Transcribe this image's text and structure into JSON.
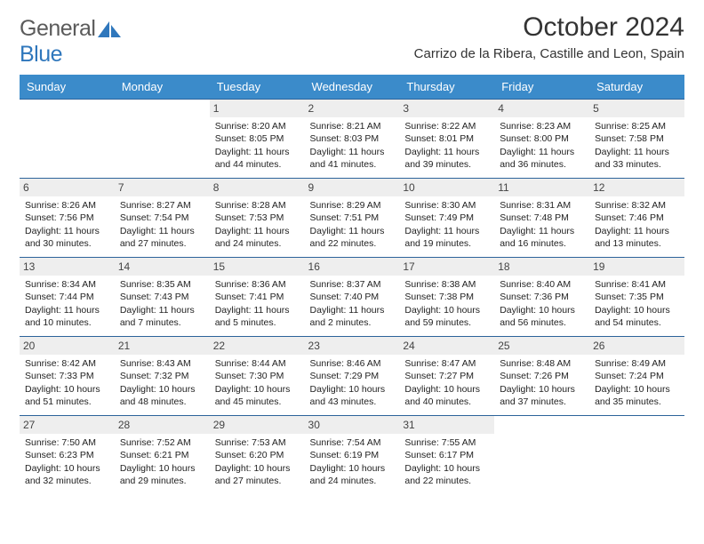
{
  "logo": {
    "word1": "General",
    "word2": "Blue"
  },
  "title": "October 2024",
  "subtitle": "Carrizo de la Ribera, Castille and Leon, Spain",
  "style": {
    "header_bg": "#3b8bca",
    "header_fg": "#ffffff",
    "daynum_bg": "#eeeeee",
    "row_border": "#2c639a",
    "title_fontsize": 30,
    "subtitle_fontsize": 15,
    "th_fontsize": 13,
    "cell_fontsize": 10.5
  },
  "day_headers": [
    "Sunday",
    "Monday",
    "Tuesday",
    "Wednesday",
    "Thursday",
    "Friday",
    "Saturday"
  ],
  "weeks": [
    [
      null,
      null,
      {
        "n": "1",
        "sunrise": "8:20 AM",
        "sunset": "8:05 PM",
        "daylight": "11 hours and 44 minutes."
      },
      {
        "n": "2",
        "sunrise": "8:21 AM",
        "sunset": "8:03 PM",
        "daylight": "11 hours and 41 minutes."
      },
      {
        "n": "3",
        "sunrise": "8:22 AM",
        "sunset": "8:01 PM",
        "daylight": "11 hours and 39 minutes."
      },
      {
        "n": "4",
        "sunrise": "8:23 AM",
        "sunset": "8:00 PM",
        "daylight": "11 hours and 36 minutes."
      },
      {
        "n": "5",
        "sunrise": "8:25 AM",
        "sunset": "7:58 PM",
        "daylight": "11 hours and 33 minutes."
      }
    ],
    [
      {
        "n": "6",
        "sunrise": "8:26 AM",
        "sunset": "7:56 PM",
        "daylight": "11 hours and 30 minutes."
      },
      {
        "n": "7",
        "sunrise": "8:27 AM",
        "sunset": "7:54 PM",
        "daylight": "11 hours and 27 minutes."
      },
      {
        "n": "8",
        "sunrise": "8:28 AM",
        "sunset": "7:53 PM",
        "daylight": "11 hours and 24 minutes."
      },
      {
        "n": "9",
        "sunrise": "8:29 AM",
        "sunset": "7:51 PM",
        "daylight": "11 hours and 22 minutes."
      },
      {
        "n": "10",
        "sunrise": "8:30 AM",
        "sunset": "7:49 PM",
        "daylight": "11 hours and 19 minutes."
      },
      {
        "n": "11",
        "sunrise": "8:31 AM",
        "sunset": "7:48 PM",
        "daylight": "11 hours and 16 minutes."
      },
      {
        "n": "12",
        "sunrise": "8:32 AM",
        "sunset": "7:46 PM",
        "daylight": "11 hours and 13 minutes."
      }
    ],
    [
      {
        "n": "13",
        "sunrise": "8:34 AM",
        "sunset": "7:44 PM",
        "daylight": "11 hours and 10 minutes."
      },
      {
        "n": "14",
        "sunrise": "8:35 AM",
        "sunset": "7:43 PM",
        "daylight": "11 hours and 7 minutes."
      },
      {
        "n": "15",
        "sunrise": "8:36 AM",
        "sunset": "7:41 PM",
        "daylight": "11 hours and 5 minutes."
      },
      {
        "n": "16",
        "sunrise": "8:37 AM",
        "sunset": "7:40 PM",
        "daylight": "11 hours and 2 minutes."
      },
      {
        "n": "17",
        "sunrise": "8:38 AM",
        "sunset": "7:38 PM",
        "daylight": "10 hours and 59 minutes."
      },
      {
        "n": "18",
        "sunrise": "8:40 AM",
        "sunset": "7:36 PM",
        "daylight": "10 hours and 56 minutes."
      },
      {
        "n": "19",
        "sunrise": "8:41 AM",
        "sunset": "7:35 PM",
        "daylight": "10 hours and 54 minutes."
      }
    ],
    [
      {
        "n": "20",
        "sunrise": "8:42 AM",
        "sunset": "7:33 PM",
        "daylight": "10 hours and 51 minutes."
      },
      {
        "n": "21",
        "sunrise": "8:43 AM",
        "sunset": "7:32 PM",
        "daylight": "10 hours and 48 minutes."
      },
      {
        "n": "22",
        "sunrise": "8:44 AM",
        "sunset": "7:30 PM",
        "daylight": "10 hours and 45 minutes."
      },
      {
        "n": "23",
        "sunrise": "8:46 AM",
        "sunset": "7:29 PM",
        "daylight": "10 hours and 43 minutes."
      },
      {
        "n": "24",
        "sunrise": "8:47 AM",
        "sunset": "7:27 PM",
        "daylight": "10 hours and 40 minutes."
      },
      {
        "n": "25",
        "sunrise": "8:48 AM",
        "sunset": "7:26 PM",
        "daylight": "10 hours and 37 minutes."
      },
      {
        "n": "26",
        "sunrise": "8:49 AM",
        "sunset": "7:24 PM",
        "daylight": "10 hours and 35 minutes."
      }
    ],
    [
      {
        "n": "27",
        "sunrise": "7:50 AM",
        "sunset": "6:23 PM",
        "daylight": "10 hours and 32 minutes."
      },
      {
        "n": "28",
        "sunrise": "7:52 AM",
        "sunset": "6:21 PM",
        "daylight": "10 hours and 29 minutes."
      },
      {
        "n": "29",
        "sunrise": "7:53 AM",
        "sunset": "6:20 PM",
        "daylight": "10 hours and 27 minutes."
      },
      {
        "n": "30",
        "sunrise": "7:54 AM",
        "sunset": "6:19 PM",
        "daylight": "10 hours and 24 minutes."
      },
      {
        "n": "31",
        "sunrise": "7:55 AM",
        "sunset": "6:17 PM",
        "daylight": "10 hours and 22 minutes."
      },
      null,
      null
    ]
  ],
  "labels": {
    "sunrise_prefix": "Sunrise: ",
    "sunset_prefix": "Sunset: ",
    "daylight_prefix": "Daylight: "
  }
}
